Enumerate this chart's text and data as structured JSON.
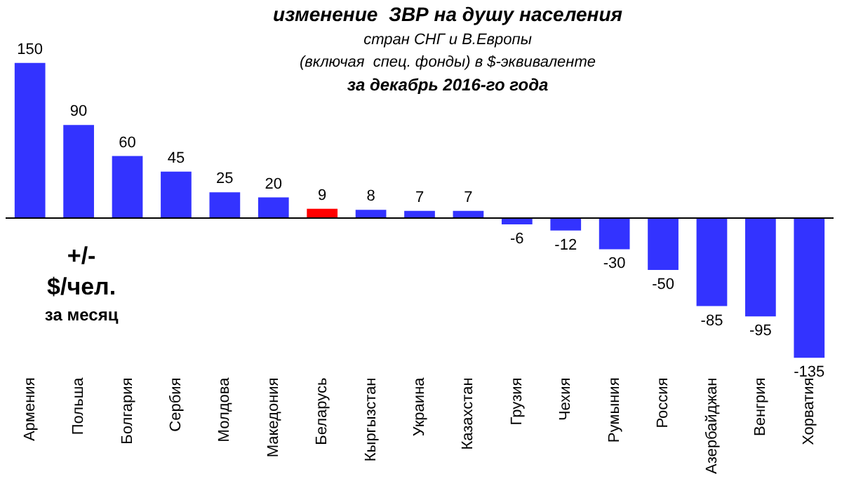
{
  "chart_data": {
    "type": "bar",
    "title": "изменение  ЗВР на душу населения",
    "subtitle": "стран СНГ и В.Европы\n(включая  спец. фонды) в $-эквиваленте\nза декабрь 2016-го года",
    "categories": [
      "Армения",
      "Польша",
      "Болгария",
      "Сербия",
      "Молдова",
      "Македония",
      "Беларусь",
      "Кыргызстан",
      "Украина",
      "Казахстан",
      "Грузия",
      "Чехия",
      "Румыния",
      "Россия",
      "Азербайджан",
      "Венгрия",
      "Хорватия"
    ],
    "values": [
      150,
      90,
      60,
      45,
      25,
      20,
      9,
      8,
      7,
      7,
      -6,
      -12,
      -30,
      -50,
      -85,
      -95,
      -135
    ],
    "colors": [
      "#3333ff",
      "#3333ff",
      "#3333ff",
      "#3333ff",
      "#3333ff",
      "#3333ff",
      "#ff0000",
      "#3333ff",
      "#3333ff",
      "#3333ff",
      "#3333ff",
      "#3333ff",
      "#3333ff",
      "#3333ff",
      "#3333ff",
      "#3333ff",
      "#3333ff"
    ],
    "data_labels": true,
    "grid": false,
    "legend": false,
    "annotations": [
      "+/-\n$/чел.\nза месяц"
    ]
  }
}
